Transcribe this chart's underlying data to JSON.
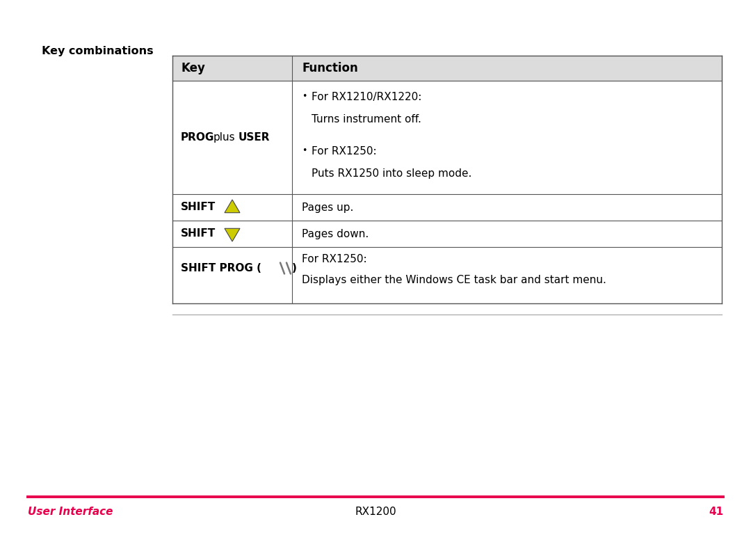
{
  "page_bg": "#ffffff",
  "section_label": "Key combinations",
  "section_label_bold": true,
  "section_label_color": "#000000",
  "section_label_fontsize": 11.5,
  "col1_header": "Key",
  "col2_header": "Function",
  "header_bg": "#dcdcdc",
  "table_border_color": "#555555",
  "table_lw": 1.0,
  "inner_lw": 0.8,
  "footer_line_color": "#e8004c",
  "footer_left_text": "User Interface",
  "footer_left_color": "#e8004c",
  "footer_center_text": "RX1200",
  "footer_center_color": "#000000",
  "footer_right_text": "41",
  "footer_right_color": "#e8004c",
  "body_fontsize": 11.0,
  "header_fontsize": 12.0,
  "triangle_fill": "#cccc00",
  "triangle_edge": "#444444",
  "bottom_rule_color": "#aaaaaa"
}
